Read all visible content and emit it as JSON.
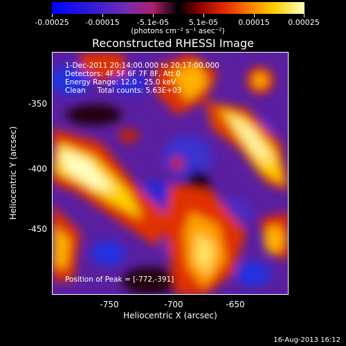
{
  "colorbar": {
    "ticks": [
      "-0.00025",
      "-0.00015",
      "-5.1e-05",
      "5.1e-05",
      "0.00015",
      "0.00025"
    ],
    "units": "(photons cm⁻² s⁻¹ asec⁻²)"
  },
  "title": "Reconstructed RHESSI Image",
  "info": {
    "line1": "1-Dec-2011 20:14:00.000 to 20:17:00.000",
    "line2": "Detectors: 4F 5F 6F 7F 8F, Att 0",
    "line3": "Energy Range: 12.0 - 25.0 keV",
    "line4": "Clean     Total counts: 5.63E+03"
  },
  "peak": "Position of Peak = [-772,-391]",
  "y_axis": {
    "label": "Heliocentric Y (arcsec)",
    "ticks": [
      "-350",
      "-400",
      "-450"
    ]
  },
  "x_axis": {
    "label": "Heliocentric X (arcsec)",
    "ticks": [
      "-750",
      "-700",
      "-650"
    ]
  },
  "footer_date": "16-Aug-2013 16:12"
}
